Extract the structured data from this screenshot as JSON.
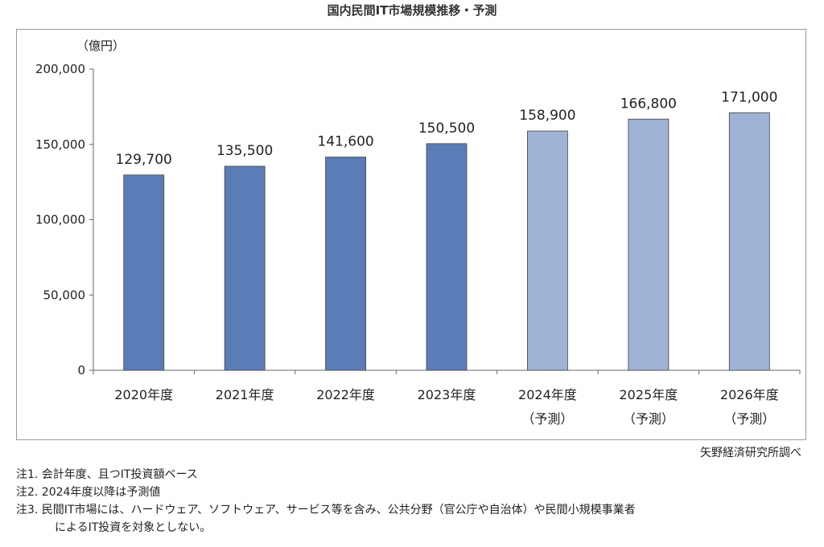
{
  "title": "国内民間IT市場規模推移・予測",
  "source": "矢野経済研究所調べ",
  "notes": [
    "注1.  会計年度、且つIT投資額ベース",
    "注2.  2024年度以降は予測値",
    "注3.  民間IT市場には、ハードウェア、ソフトウェア、サービス等を含み、公共分野（官公庁や自治体）や民間小規模事業者"
  ],
  "note3_cont": "によるIT投資を対象としない。",
  "colors": {
    "actual": "#5b7db7",
    "forecast": "#9fb3d6",
    "bar_stroke": "#444444",
    "axis": "#666666"
  },
  "chart_data": {
    "type": "bar",
    "unit_label": "（億円）",
    "categories": [
      "2020年度",
      "2021年度",
      "2022年度",
      "2023年度",
      "2024年度",
      "2025年度",
      "2026年度"
    ],
    "category_notes": [
      "",
      "",
      "",
      "",
      "（予測）",
      "（予測）",
      "（予測）"
    ],
    "values": [
      129700,
      135500,
      141600,
      150500,
      158900,
      166800,
      171000
    ],
    "value_labels": [
      "129,700",
      "135,500",
      "141,600",
      "150,500",
      "158,900",
      "166,800",
      "171,000"
    ],
    "forecast": [
      false,
      false,
      false,
      false,
      true,
      true,
      true
    ],
    "ylim": [
      0,
      200000
    ],
    "yticks": [
      0,
      50000,
      100000,
      150000,
      200000
    ],
    "ytick_labels": [
      "0",
      "50,000",
      "100,000",
      "150,000",
      "200,000"
    ],
    "grid": false,
    "legend": "none"
  }
}
